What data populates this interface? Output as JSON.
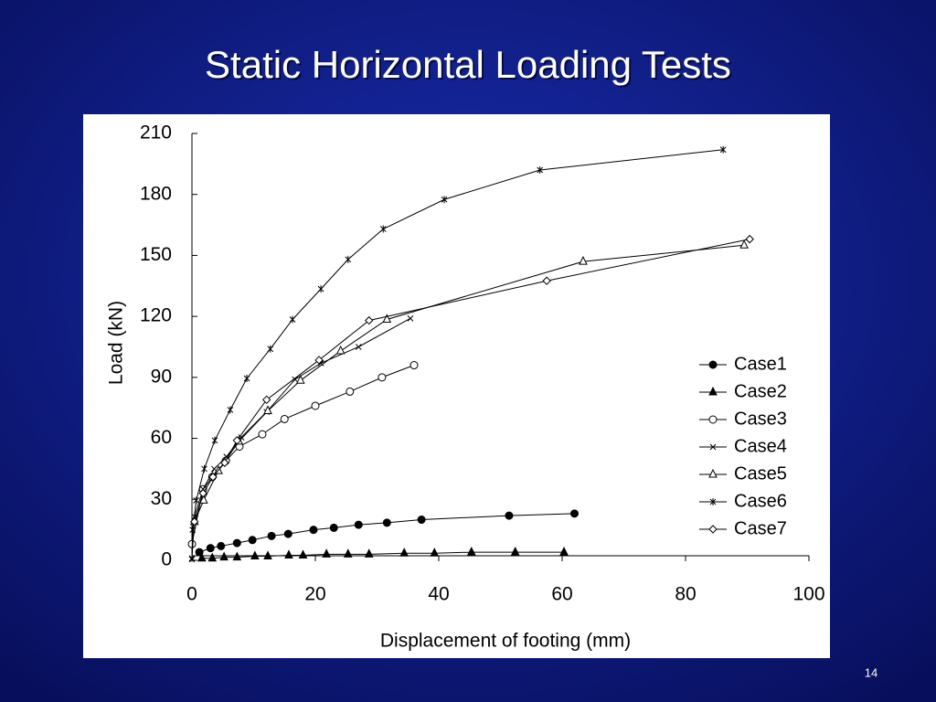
{
  "title": "Static Horizontal Loading Tests",
  "page_number": "14",
  "chart_data": {
    "type": "line",
    "x_label": "Displacement of footing (mm)",
    "y_label": "Load (kN)",
    "xlim": [
      0,
      100
    ],
    "xticks": [
      0,
      20,
      40,
      60,
      80,
      100
    ],
    "ylim": [
      0,
      210
    ],
    "yticks": [
      0,
      30,
      60,
      90,
      120,
      150,
      180,
      210
    ],
    "legend": "right",
    "series": [
      {
        "name": "Case1",
        "color": "#000000",
        "marker": "filled-circle",
        "x": [
          1.2,
          3,
          4.7,
          7.3,
          9.8,
          12.9,
          15.6,
          19.7,
          23,
          27,
          31.6,
          37.2,
          51.4,
          62
        ],
        "values": [
          4,
          6,
          7,
          8.5,
          10,
          12,
          13,
          15,
          16,
          17.5,
          18.5,
          20,
          22,
          23
        ]
      },
      {
        "name": "Case2",
        "color": "#000000",
        "marker": "filled-triangle",
        "x": [
          1.6,
          3.3,
          5.2,
          7.3,
          10.2,
          12.3,
          15.7,
          18,
          21.8,
          25.3,
          28.7,
          34.4,
          39.3,
          45.3,
          52.4,
          60.3
        ],
        "values": [
          1,
          1,
          1.5,
          1.5,
          2,
          2,
          2.5,
          2.5,
          3,
          3,
          3,
          3.5,
          3.5,
          4,
          4,
          4
        ]
      },
      {
        "name": "Case3",
        "color": "#000000",
        "marker": "open-circle",
        "x": [
          0,
          1.8,
          3.3,
          5.5,
          7.7,
          11.4,
          15,
          20,
          25.6,
          30.8,
          36
        ],
        "values": [
          8,
          35,
          41,
          49,
          56,
          62,
          69.5,
          76,
          83,
          90,
          96
        ]
      },
      {
        "name": "Case4",
        "color": "#000000",
        "marker": "cross",
        "x": [
          0,
          0.4,
          1.8,
          3.6,
          5.6,
          8,
          12.1,
          16.7,
          20.9,
          27,
          35.4
        ],
        "values": [
          0.5,
          21.5,
          35,
          45,
          51,
          60.5,
          73,
          89,
          97,
          105,
          119
        ]
      },
      {
        "name": "Case5",
        "color": "#000000",
        "marker": "open-triangle",
        "x": [
          0.4,
          1.9,
          4.3,
          7.6,
          12.3,
          17.6,
          24.1,
          31.6,
          63.4,
          89.5
        ],
        "values": [
          19,
          29.5,
          44,
          58.5,
          73.5,
          88.5,
          103,
          118.5,
          147,
          155
        ]
      },
      {
        "name": "Case6",
        "color": "#000000",
        "marker": "asterisk",
        "x": [
          0,
          0.1,
          0.7,
          2,
          3.7,
          6.2,
          8.9,
          12.7,
          16.3,
          20.9,
          25.3,
          31,
          40.9,
          56.4,
          86.1
        ],
        "values": [
          1,
          15,
          29.5,
          45,
          59,
          74,
          89.5,
          104,
          118.5,
          133.5,
          148,
          163,
          177.5,
          192,
          202
        ]
      },
      {
        "name": "Case7",
        "color": "#000000",
        "marker": "open-diamond",
        "x": [
          0.4,
          1.8,
          3.4,
          5.3,
          7.3,
          12.1,
          20.6,
          28.7,
          57.5,
          90.4
        ],
        "values": [
          19,
          33,
          41,
          48,
          59,
          79,
          98.5,
          118,
          137.5,
          158
        ]
      }
    ]
  }
}
